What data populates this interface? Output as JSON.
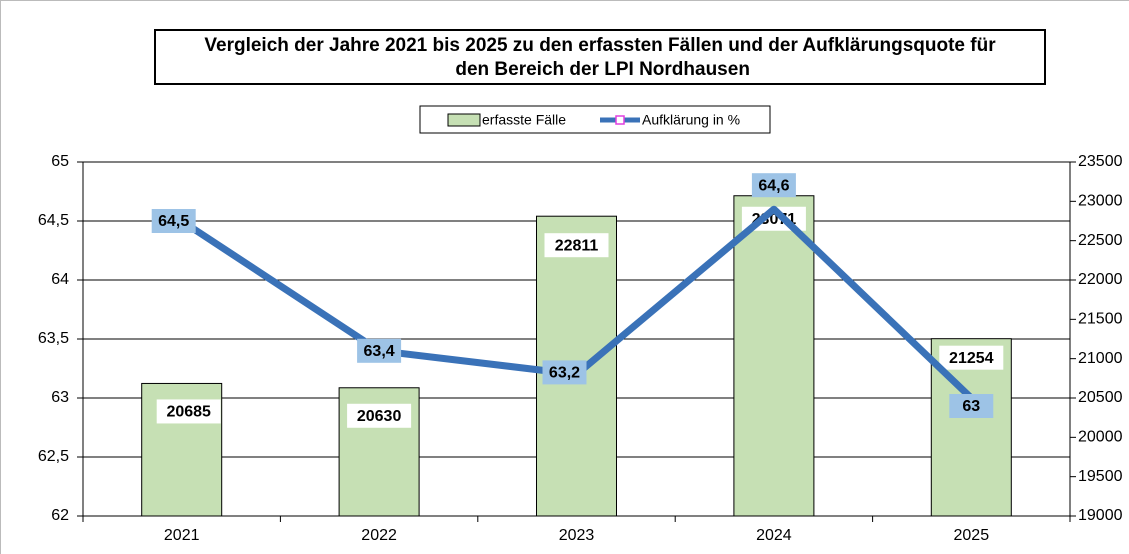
{
  "chart_data": {
    "type": "bar_line",
    "title": "Vergleich der Jahre 2021 bis 2025 zu den erfassten Fällen und der Aufklärungsquote für den Bereich der LPI Nordhausen",
    "categories": [
      "2021",
      "2022",
      "2023",
      "2024",
      "2025"
    ],
    "series": [
      {
        "name": "erfasste Fälle",
        "type": "bar",
        "color": "#c6e0b4",
        "axis": "y2",
        "values": [
          20685,
          20630,
          22811,
          23071,
          21254
        ]
      },
      {
        "name": "Aufklärung in %",
        "type": "line",
        "color": "#3a72b8",
        "values": [
          64.5,
          63.4,
          63.2,
          64.6,
          63
        ],
        "value_labels": [
          "64,5",
          "63,4",
          "63,2",
          "64,6",
          "63"
        ]
      }
    ],
    "ylim": [
      62,
      65
    ],
    "yticks": [
      62,
      {
        "value": 62.5,
        "label": "62,5"
      },
      63,
      {
        "value": 63.5,
        "label": "63,5"
      },
      64,
      {
        "value": 64.5,
        "label": "64,5"
      },
      65
    ],
    "y2lim": [
      19000,
      23500
    ],
    "y2ticks": [
      19000,
      19500,
      20000,
      20500,
      21000,
      21500,
      22000,
      22500,
      23000,
      23500
    ],
    "grid": true,
    "legend": "top"
  }
}
